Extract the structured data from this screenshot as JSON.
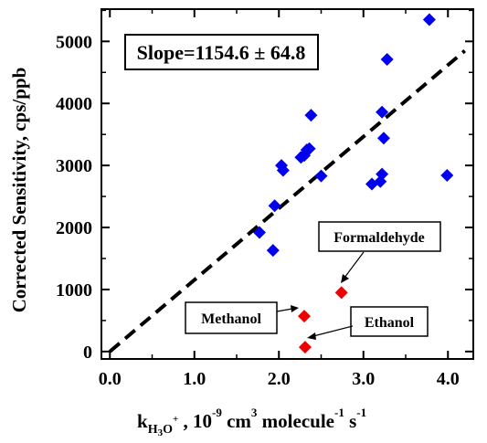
{
  "chart_data": {
    "type": "scatter",
    "title": "",
    "xlabel": {
      "main": "k",
      "sub_base": "H",
      "sub_3": "3",
      "sub_o": "O",
      "sub_plus": "+",
      "rest_1": " , 10",
      "exp_1": "-9",
      "rest_2": " cm",
      "exp_2": "3",
      "rest_3": " molecule",
      "exp_3": "-1",
      "rest_4": " s",
      "exp_4": "-1"
    },
    "ylabel": "Corrected Sensitivity, cps/ppb",
    "xlim": [
      -0.1,
      4.3
    ],
    "ylim": [
      -120,
      5520
    ],
    "x_ticks": [
      0.0,
      1.0,
      2.0,
      3.0,
      4.0
    ],
    "x_tick_labels": [
      "0.0",
      "1.0",
      "2.0",
      "3.0",
      "4.0"
    ],
    "y_ticks": [
      0,
      1000,
      2000,
      3000,
      4000,
      5000
    ],
    "y_tick_labels": [
      "0",
      "1000",
      "2000",
      "3000",
      "4000",
      "5000"
    ],
    "grid": false,
    "series": [
      {
        "color": "#0000ee",
        "marker": "diamond",
        "points": [
          [
            1.77,
            1920
          ],
          [
            1.93,
            1630
          ],
          [
            1.95,
            2350
          ],
          [
            2.03,
            3000
          ],
          [
            2.05,
            2920
          ],
          [
            2.26,
            3130
          ],
          [
            2.3,
            3160
          ],
          [
            2.33,
            3250
          ],
          [
            2.36,
            3270
          ],
          [
            2.38,
            3810
          ],
          [
            2.5,
            2830
          ],
          [
            3.1,
            2700
          ],
          [
            3.2,
            2740
          ],
          [
            3.22,
            2860
          ],
          [
            3.22,
            3860
          ],
          [
            3.24,
            3440
          ],
          [
            3.28,
            4710
          ],
          [
            3.78,
            5350
          ],
          [
            3.99,
            2840
          ]
        ]
      },
      {
        "color": "#ee0000",
        "marker": "diamond",
        "points": [
          [
            2.3,
            570
          ],
          [
            2.31,
            70
          ],
          [
            2.74,
            950
          ]
        ]
      }
    ],
    "fit_line": {
      "x": [
        0.0,
        4.2
      ],
      "y": [
        0,
        4849.3
      ],
      "style": "dashed",
      "color": "#000000"
    },
    "annotations": {
      "slope": "Slope=1154.6 ± 64.8",
      "formaldehyde": "Formaldehyde",
      "methanol": "Methanol",
      "ethanol": "Ethanol"
    }
  }
}
